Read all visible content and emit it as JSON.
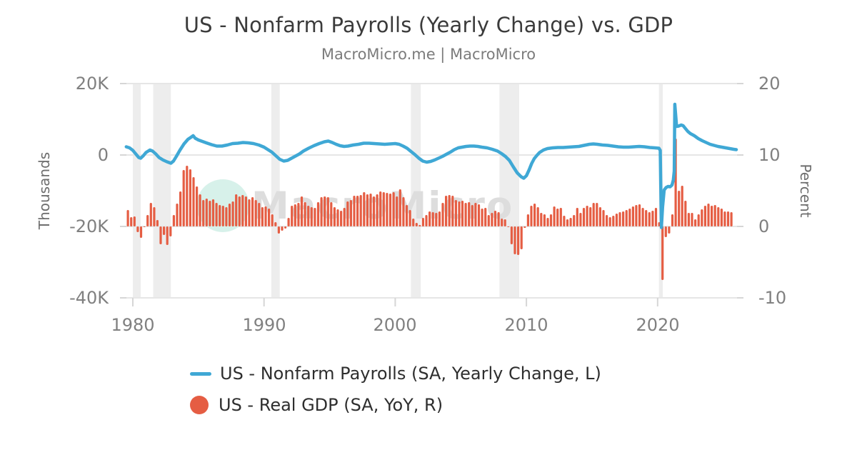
{
  "page": {
    "subtitle": "MacroMicro.me | MacroMicro",
    "watermark": "MacroMicro"
  },
  "chart_data": {
    "type": "line+bar",
    "title": "US - Nonfarm Payrolls (Yearly Change) vs. GDP",
    "x_axis": {
      "tick_labels": [
        "1980",
        "1990",
        "2000",
        "2010",
        "2020"
      ],
      "tick_values": [
        1980,
        1990,
        2000,
        2010,
        2020
      ],
      "range": [
        1979.45,
        2026.1
      ],
      "grid": false
    },
    "left_axis": {
      "title": "Thousands",
      "tick_labels": [
        "20K",
        "0",
        "-20K",
        "-40K"
      ],
      "tick_values": [
        20000,
        0,
        -20000,
        -40000
      ],
      "range": [
        -40000,
        20000
      ],
      "grid": true
    },
    "right_axis": {
      "title": "Percent",
      "tick_labels": [
        "20",
        "10",
        "0",
        "-10"
      ],
      "tick_values": [
        20,
        10,
        0,
        -10
      ],
      "range": [
        -10,
        20
      ]
    },
    "recession_bands": [
      [
        1980.0,
        1980.6
      ],
      [
        1981.55,
        1982.9
      ],
      [
        1990.55,
        1991.2
      ],
      [
        2001.2,
        2001.95
      ],
      [
        2007.95,
        2009.45
      ],
      [
        2020.1,
        2020.4
      ]
    ],
    "legend_position": "bottom",
    "style": {
      "grid_color": "#e6e6e6",
      "tick_color": "#d6d6d6",
      "band_color": "#ededed",
      "watermark_circle": "#d7f1ea",
      "watermark_text_color": "#dddddd"
    },
    "series": [
      {
        "name": "US - Nonfarm Payrolls (SA, Yearly Change, L)",
        "type": "line",
        "axis": "left",
        "unit": "thousands of persons, yearly change",
        "color": "#3fa8d5",
        "points": [
          [
            1979.5,
            2300
          ],
          [
            1979.75,
            2000
          ],
          [
            1980.0,
            1300
          ],
          [
            1980.2,
            400
          ],
          [
            1980.45,
            -700
          ],
          [
            1980.6,
            -900
          ],
          [
            1980.8,
            -200
          ],
          [
            1981.0,
            700
          ],
          [
            1981.3,
            1400
          ],
          [
            1981.5,
            1100
          ],
          [
            1981.75,
            300
          ],
          [
            1982.0,
            -700
          ],
          [
            1982.3,
            -1400
          ],
          [
            1982.6,
            -1900
          ],
          [
            1982.9,
            -2300
          ],
          [
            1983.1,
            -1700
          ],
          [
            1983.3,
            -500
          ],
          [
            1983.6,
            1400
          ],
          [
            1983.9,
            3100
          ],
          [
            1984.2,
            4400
          ],
          [
            1984.45,
            5000
          ],
          [
            1984.6,
            5400
          ],
          [
            1984.75,
            4700
          ],
          [
            1985.0,
            4200
          ],
          [
            1985.3,
            3800
          ],
          [
            1985.6,
            3400
          ],
          [
            1986.0,
            2900
          ],
          [
            1986.4,
            2500
          ],
          [
            1986.8,
            2500
          ],
          [
            1987.2,
            2800
          ],
          [
            1987.6,
            3200
          ],
          [
            1988.0,
            3300
          ],
          [
            1988.4,
            3500
          ],
          [
            1988.8,
            3400
          ],
          [
            1989.2,
            3200
          ],
          [
            1989.6,
            2800
          ],
          [
            1990.0,
            2200
          ],
          [
            1990.3,
            1500
          ],
          [
            1990.6,
            800
          ],
          [
            1990.9,
            -200
          ],
          [
            1991.2,
            -1200
          ],
          [
            1991.5,
            -1700
          ],
          [
            1991.8,
            -1500
          ],
          [
            1992.1,
            -900
          ],
          [
            1992.4,
            -300
          ],
          [
            1992.7,
            300
          ],
          [
            1993.0,
            1100
          ],
          [
            1993.4,
            1900
          ],
          [
            1993.8,
            2600
          ],
          [
            1994.2,
            3200
          ],
          [
            1994.6,
            3700
          ],
          [
            1994.9,
            3900
          ],
          [
            1995.2,
            3500
          ],
          [
            1995.5,
            3000
          ],
          [
            1995.8,
            2600
          ],
          [
            1996.1,
            2400
          ],
          [
            1996.4,
            2500
          ],
          [
            1996.8,
            2800
          ],
          [
            1997.2,
            3000
          ],
          [
            1997.6,
            3300
          ],
          [
            1998.0,
            3300
          ],
          [
            1998.4,
            3200
          ],
          [
            1998.8,
            3100
          ],
          [
            1999.2,
            3000
          ],
          [
            1999.6,
            3100
          ],
          [
            2000.0,
            3200
          ],
          [
            2000.3,
            3000
          ],
          [
            2000.6,
            2500
          ],
          [
            2000.9,
            1900
          ],
          [
            2001.2,
            1000
          ],
          [
            2001.5,
            100
          ],
          [
            2001.8,
            -900
          ],
          [
            2002.1,
            -1700
          ],
          [
            2002.4,
            -2000
          ],
          [
            2002.7,
            -1800
          ],
          [
            2003.0,
            -1400
          ],
          [
            2003.3,
            -900
          ],
          [
            2003.6,
            -400
          ],
          [
            2003.9,
            200
          ],
          [
            2004.2,
            800
          ],
          [
            2004.5,
            1500
          ],
          [
            2004.8,
            2000
          ],
          [
            2005.1,
            2200
          ],
          [
            2005.4,
            2400
          ],
          [
            2005.7,
            2500
          ],
          [
            2006.0,
            2500
          ],
          [
            2006.3,
            2400
          ],
          [
            2006.6,
            2200
          ],
          [
            2007.0,
            2000
          ],
          [
            2007.4,
            1600
          ],
          [
            2007.8,
            1100
          ],
          [
            2008.1,
            400
          ],
          [
            2008.4,
            -400
          ],
          [
            2008.7,
            -1500
          ],
          [
            2009.0,
            -3300
          ],
          [
            2009.3,
            -5000
          ],
          [
            2009.6,
            -6100
          ],
          [
            2009.8,
            -6500
          ],
          [
            2010.0,
            -5800
          ],
          [
            2010.2,
            -4200
          ],
          [
            2010.4,
            -2400
          ],
          [
            2010.6,
            -1000
          ],
          [
            2010.8,
            -100
          ],
          [
            2011.0,
            700
          ],
          [
            2011.3,
            1400
          ],
          [
            2011.6,
            1800
          ],
          [
            2012.0,
            2000
          ],
          [
            2012.4,
            2100
          ],
          [
            2012.8,
            2100
          ],
          [
            2013.2,
            2200
          ],
          [
            2013.6,
            2300
          ],
          [
            2014.0,
            2400
          ],
          [
            2014.4,
            2700
          ],
          [
            2014.8,
            3000
          ],
          [
            2015.1,
            3100
          ],
          [
            2015.4,
            3000
          ],
          [
            2015.8,
            2800
          ],
          [
            2016.2,
            2700
          ],
          [
            2016.6,
            2500
          ],
          [
            2017.0,
            2300
          ],
          [
            2017.4,
            2200
          ],
          [
            2017.8,
            2200
          ],
          [
            2018.2,
            2300
          ],
          [
            2018.6,
            2400
          ],
          [
            2019.0,
            2300
          ],
          [
            2019.4,
            2100
          ],
          [
            2019.8,
            2000
          ],
          [
            2020.1,
            1900
          ],
          [
            2020.2,
            1300
          ],
          [
            2020.29,
            -20300
          ],
          [
            2020.38,
            -14500
          ],
          [
            2020.5,
            -9800
          ],
          [
            2020.65,
            -9100
          ],
          [
            2020.8,
            -8800
          ],
          [
            2020.95,
            -8900
          ],
          [
            2021.1,
            -8400
          ],
          [
            2021.2,
            -7000
          ],
          [
            2021.27,
            -4500
          ],
          [
            2021.31,
            14200
          ],
          [
            2021.38,
            11000
          ],
          [
            2021.45,
            8000
          ],
          [
            2021.6,
            8100
          ],
          [
            2021.8,
            8400
          ],
          [
            2021.95,
            8200
          ],
          [
            2022.1,
            7500
          ],
          [
            2022.3,
            6600
          ],
          [
            2022.5,
            6000
          ],
          [
            2022.8,
            5400
          ],
          [
            2023.1,
            4600
          ],
          [
            2023.4,
            4000
          ],
          [
            2023.7,
            3500
          ],
          [
            2024.0,
            3000
          ],
          [
            2024.3,
            2700
          ],
          [
            2024.6,
            2400
          ],
          [
            2024.9,
            2200
          ],
          [
            2025.2,
            2000
          ],
          [
            2025.5,
            1800
          ],
          [
            2025.8,
            1600
          ],
          [
            2026.0,
            1500
          ]
        ]
      },
      {
        "name": "US - Real GDP (SA, YoY, R)",
        "type": "bar",
        "axis": "right",
        "unit": "percent, year-over-year",
        "color": "#e55d43",
        "x_start": 1979.5,
        "x_step": 0.25,
        "values": [
          2.3,
          1.3,
          1.4,
          -0.8,
          -1.6,
          -0.1,
          1.6,
          3.3,
          2.7,
          0.9,
          -2.5,
          -1.2,
          -2.6,
          -1.4,
          1.6,
          3.2,
          4.9,
          7.9,
          8.5,
          8.0,
          6.9,
          5.6,
          4.5,
          3.7,
          3.9,
          3.6,
          3.8,
          3.3,
          3.0,
          2.9,
          2.7,
          3.2,
          3.5,
          4.5,
          4.2,
          4.4,
          4.2,
          3.8,
          4.1,
          3.7,
          3.3,
          2.7,
          2.8,
          2.5,
          1.7,
          0.6,
          -1.0,
          -0.6,
          -0.3,
          1.2,
          2.9,
          3.1,
          3.3,
          4.2,
          3.4,
          2.9,
          2.7,
          2.6,
          3.4,
          4.1,
          4.2,
          4.1,
          3.4,
          2.7,
          2.4,
          2.2,
          2.6,
          3.5,
          3.7,
          4.3,
          4.3,
          4.4,
          4.8,
          4.5,
          4.6,
          4.2,
          4.5,
          4.9,
          4.8,
          4.7,
          4.6,
          4.8,
          4.2,
          5.2,
          4.1,
          3.0,
          2.3,
          1.1,
          0.5,
          0.2,
          1.2,
          1.6,
          2.1,
          2.0,
          1.9,
          2.1,
          3.3,
          4.3,
          4.4,
          4.3,
          3.7,
          3.5,
          3.6,
          3.3,
          3.4,
          3.0,
          3.3,
          3.1,
          2.5,
          2.6,
          1.6,
          1.9,
          2.2,
          2.0,
          1.1,
          1.0,
          0.0,
          -2.5,
          -3.9,
          -4.0,
          -3.2,
          -0.2,
          1.7,
          2.9,
          3.2,
          2.7,
          1.9,
          1.7,
          1.2,
          1.7,
          2.8,
          2.5,
          2.6,
          1.5,
          1.0,
          1.2,
          1.6,
          2.6,
          1.9,
          2.6,
          2.9,
          2.7,
          3.3,
          3.3,
          2.7,
          2.3,
          1.6,
          1.3,
          1.5,
          1.8,
          2.0,
          2.1,
          2.3,
          2.5,
          2.8,
          3.0,
          3.1,
          2.6,
          2.3,
          2.0,
          2.2,
          2.6,
          0.6,
          -7.5,
          -1.5,
          -1.0,
          1.7,
          12.3,
          5.0,
          5.7,
          3.6,
          1.9,
          1.9,
          1.0,
          1.7,
          2.4,
          2.9,
          3.2,
          2.9,
          3.0,
          2.7,
          2.5,
          2.1,
          2.1,
          2.0
        ]
      }
    ]
  }
}
